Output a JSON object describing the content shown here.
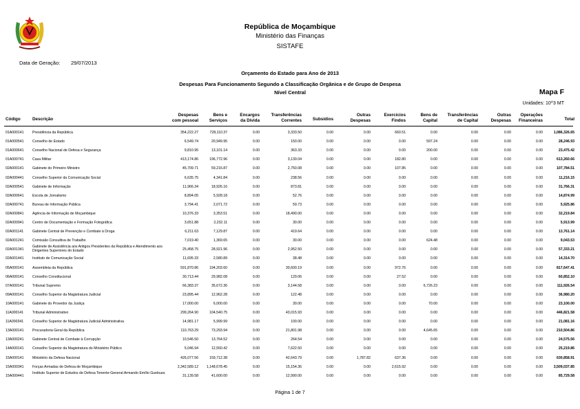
{
  "header": {
    "emblem": "mozambique-coat-of-arms",
    "republica": "República de Moçambique",
    "ministerio": "Ministério das Finanças",
    "sistafe": "SISTAFE",
    "generation_label": "Data de Geração:",
    "generation_date": "29/07/2013",
    "orcamento": "Orçamento do Estado para Ano de 2013",
    "despesas": "Despesas Para Funcionamento  Segundo a Classificação Orgânica e de Grupo de Despesa",
    "nivel": "Nível Central",
    "mapa": "Mapa F",
    "unidades": "Unidades: 10^3 MT"
  },
  "columns": [
    [
      "Código"
    ],
    [
      "Descrição"
    ],
    [
      "Despesas",
      "com pessoal"
    ],
    [
      "Bens e",
      "Serviços"
    ],
    [
      "Encargos",
      "da Dívida"
    ],
    [
      "Transferências",
      "Correntes"
    ],
    [
      "Subsídios"
    ],
    [
      "Outras",
      "Despesas"
    ],
    [
      "Exercícios",
      "Findos"
    ],
    [
      "Bens de",
      "Capital"
    ],
    [
      "Transferências",
      "de Capital"
    ],
    [
      "Outras",
      "Despesas"
    ],
    [
      "Operações",
      "Financeiras"
    ],
    [
      "Total"
    ]
  ],
  "rows": [
    [
      "01A000141",
      "Presidência da República",
      "354,222.27",
      "728,110.37",
      "0.00",
      "3,333.50",
      "0.00",
      "0.00",
      "660.51",
      "0.00",
      "0.00",
      "0.00",
      "0.00",
      "1,086,326.65"
    ],
    [
      "01A000541",
      "Conselho de Estado",
      "6,549.74",
      "20,949.95",
      "0.00",
      "150.00",
      "0.00",
      "0.00",
      "0.00",
      "597.24",
      "0.00",
      "0.00",
      "0.00",
      "28,246.93"
    ],
    [
      "01A000641",
      "Conselho Nacional de Defesa e Segurança",
      "9,810.95",
      "13,101.14",
      "0.00",
      "363.33",
      "0.00",
      "0.00",
      "0.00",
      "200.00",
      "0.00",
      "0.00",
      "0.00",
      "23,475.42"
    ],
    [
      "01A000741",
      "Casa Militar",
      "413,174.86",
      "196,772.96",
      "0.00",
      "3,130.04",
      "0.00",
      "0.00",
      "182.80",
      "0.00",
      "0.00",
      "0.00",
      "0.00",
      "613,260.66"
    ],
    [
      "02A000141",
      "Gabinete do Primeiro Ministro",
      "45,709.71",
      "59,216.87",
      "0.00",
      "2,750.08",
      "0.00",
      "0.00",
      "107.85",
      "0.00",
      "0.00",
      "0.00",
      "0.00",
      "107,784.51"
    ],
    [
      "02A000441",
      "Conselho Superior da Comunicação Social",
      "6,635.75",
      "4,341.84",
      "0.00",
      "238.56",
      "0.00",
      "0.00",
      "0.00",
      "0.00",
      "0.00",
      "0.00",
      "0.00",
      "11,216.15"
    ],
    [
      "02A000541",
      "Gabinete de Informação",
      "11,966.34",
      "18,926.16",
      "0.00",
      "873.81",
      "0.00",
      "0.00",
      "0.00",
      "0.00",
      "0.00",
      "0.00",
      "0.00",
      "31,766.31"
    ],
    [
      "02A000641",
      "Escola de Jornalismo",
      "8,894.05",
      "5,928.18",
      "0.00",
      "52.76",
      "0.00",
      "0.00",
      "0.00",
      "0.00",
      "0.00",
      "0.00",
      "0.00",
      "14,874.99"
    ],
    [
      "02A000741",
      "Bureau de Informação Pública",
      "3,794.41",
      "2,071.72",
      "0.00",
      "59.73",
      "0.00",
      "0.00",
      "0.00",
      "0.00",
      "0.00",
      "0.00",
      "0.00",
      "5,925.86"
    ],
    [
      "02A000841",
      "Agência de Informação de Moçambique",
      "10,376.33",
      "3,353.51",
      "0.00",
      "18,490.00",
      "0.00",
      "0.00",
      "0.00",
      "0.00",
      "0.00",
      "0.00",
      "0.00",
      "32,219.84"
    ],
    [
      "02A000941",
      "Centro de Documentação e Formação Fotográfica",
      "3,651.88",
      "2,232.11",
      "0.00",
      "30.00",
      "0.00",
      "0.00",
      "0.00",
      "0.00",
      "0.00",
      "0.00",
      "0.00",
      "5,913.99"
    ],
    [
      "02A001141",
      "Gabinete Central de Prevenção e Combate à Droga",
      "6,211.63",
      "7,129.87",
      "0.00",
      "419.64",
      "0.00",
      "0.00",
      "0.00",
      "0.00",
      "0.00",
      "0.00",
      "0.00",
      "13,761.14"
    ],
    [
      "02A001241",
      "Comissão Consultiva de Trabalho",
      "7,019.40",
      "1,369.65",
      "0.00",
      "30.00",
      "0.00",
      "0.00",
      "0.00",
      "624.48",
      "0.00",
      "0.00",
      "0.00",
      "9,043.53"
    ],
    [
      "02A001341",
      "Gabinete de Assistência aos Antigos Presidentes da República e Atendimento aos Dirigentes Superiores do Estado",
      "25,458.75",
      "28,921.96",
      "0.00",
      "2,952.50",
      "0.00",
      "0.00",
      "0.00",
      "0.00",
      "0.00",
      "0.00",
      "0.00",
      "57,333.21"
    ],
    [
      "02A001441",
      "Instituto de Comunicação Social",
      "11,695.33",
      "2,580.89",
      "0.00",
      "38.48",
      "0.00",
      "0.00",
      "0.00",
      "0.00",
      "0.00",
      "0.00",
      "0.00",
      "14,314.70"
    ],
    [
      "05A000141",
      "Assembleia da República",
      "591,870.86",
      "194,203.60",
      "0.00",
      "30,600.19",
      "0.00",
      "0.00",
      "972.76",
      "0.00",
      "0.00",
      "0.00",
      "0.00",
      "817,647.41"
    ],
    [
      "06A000141",
      "Conselho Constitucional",
      "30,713.44",
      "29,982.08",
      "0.00",
      "129.06",
      "0.00",
      "0.00",
      "27.52",
      "0.00",
      "0.00",
      "0.00",
      "0.00",
      "60,852.10"
    ],
    [
      "07A000141",
      "Tribunal Supremo",
      "66,383.37",
      "35,672.36",
      "0.00",
      "3,144.58",
      "0.00",
      "0.00",
      "0.00",
      "6,726.23",
      "0.00",
      "0.00",
      "0.00",
      "111,926.54"
    ],
    [
      "09A000141",
      "Conselho Superior da Magistratura Judicial",
      "23,895.44",
      "12,962.28",
      "0.00",
      "122.48",
      "0.00",
      "0.00",
      "0.00",
      "0.00",
      "0.00",
      "0.00",
      "0.00",
      "36,980.20"
    ],
    [
      "10A000141",
      "Gabinete do Provedor da Justiça",
      "17,000.00",
      "6,000.00",
      "0.00",
      "30.00",
      "0.00",
      "0.00",
      "0.00",
      "70.00",
      "0.00",
      "0.00",
      "0.00",
      "23,100.00"
    ],
    [
      "11A000141",
      "Tribunal Administrativo",
      "299,264.90",
      "104,540.75",
      "0.00",
      "43,015.93",
      "0.00",
      "0.00",
      "0.00",
      "0.00",
      "0.00",
      "0.00",
      "0.00",
      "446,821.58"
    ],
    [
      "11A000341",
      "Conselho Superior de Magistratura Judicial Administrativa",
      "14,981.17",
      "5,999.99",
      "0.00",
      "100.00",
      "0.00",
      "0.00",
      "0.00",
      "0.00",
      "0.00",
      "0.00",
      "0.00",
      "21,081.16"
    ],
    [
      "13A000141",
      "Procuradoria Geral da República",
      "110,763.29",
      "73,293.94",
      "0.00",
      "21,801.98",
      "0.00",
      "0.00",
      "0.00",
      "4,645.65",
      "0.00",
      "0.00",
      "0.00",
      "210,504.86"
    ],
    [
      "13A000241",
      "Gabinete Central de Combate à Corrupção",
      "10,546.50",
      "13,764.52",
      "0.00",
      "264.54",
      "0.00",
      "0.00",
      "0.00",
      "0.00",
      "0.00",
      "0.00",
      "0.00",
      "24,575.56"
    ],
    [
      "14A000141",
      "Conselho Superior da Magistratura do Ministério Público",
      "5,046.94",
      "12,550.42",
      "0.00",
      "7,622.50",
      "0.00",
      "0.00",
      "0.00",
      "0.00",
      "0.00",
      "0.00",
      "0.00",
      "25,219.86"
    ],
    [
      "15A000141",
      "Ministério da Defesa Nacional",
      "426,077.56",
      "159,712.38",
      "0.00",
      "42,643.79",
      "0.00",
      "1,787.82",
      "637.36",
      "0.00",
      "0.00",
      "0.00",
      "0.00",
      "630,858.91"
    ],
    [
      "15A000341",
      "Forças Armadas de Defesa de Moçambique",
      "2,342,589.12",
      "1,148,678.45",
      "0.00",
      "15,154.36",
      "0.00",
      "0.00",
      "2,615.92",
      "0.00",
      "0.00",
      "0.00",
      "0.00",
      "3,509,037.85"
    ],
    [
      "15A000441",
      "Instituto Superior de Estudos de Defesa Tenente-General Armando Emílio Guebuza",
      "31,139.58",
      "41,600.00",
      "0.00",
      "12,990.00",
      "0.00",
      "0.00",
      "0.00",
      "0.00",
      "0.00",
      "0.00",
      "0.00",
      "85,729.58"
    ]
  ],
  "footer": "Página 1  de 7"
}
